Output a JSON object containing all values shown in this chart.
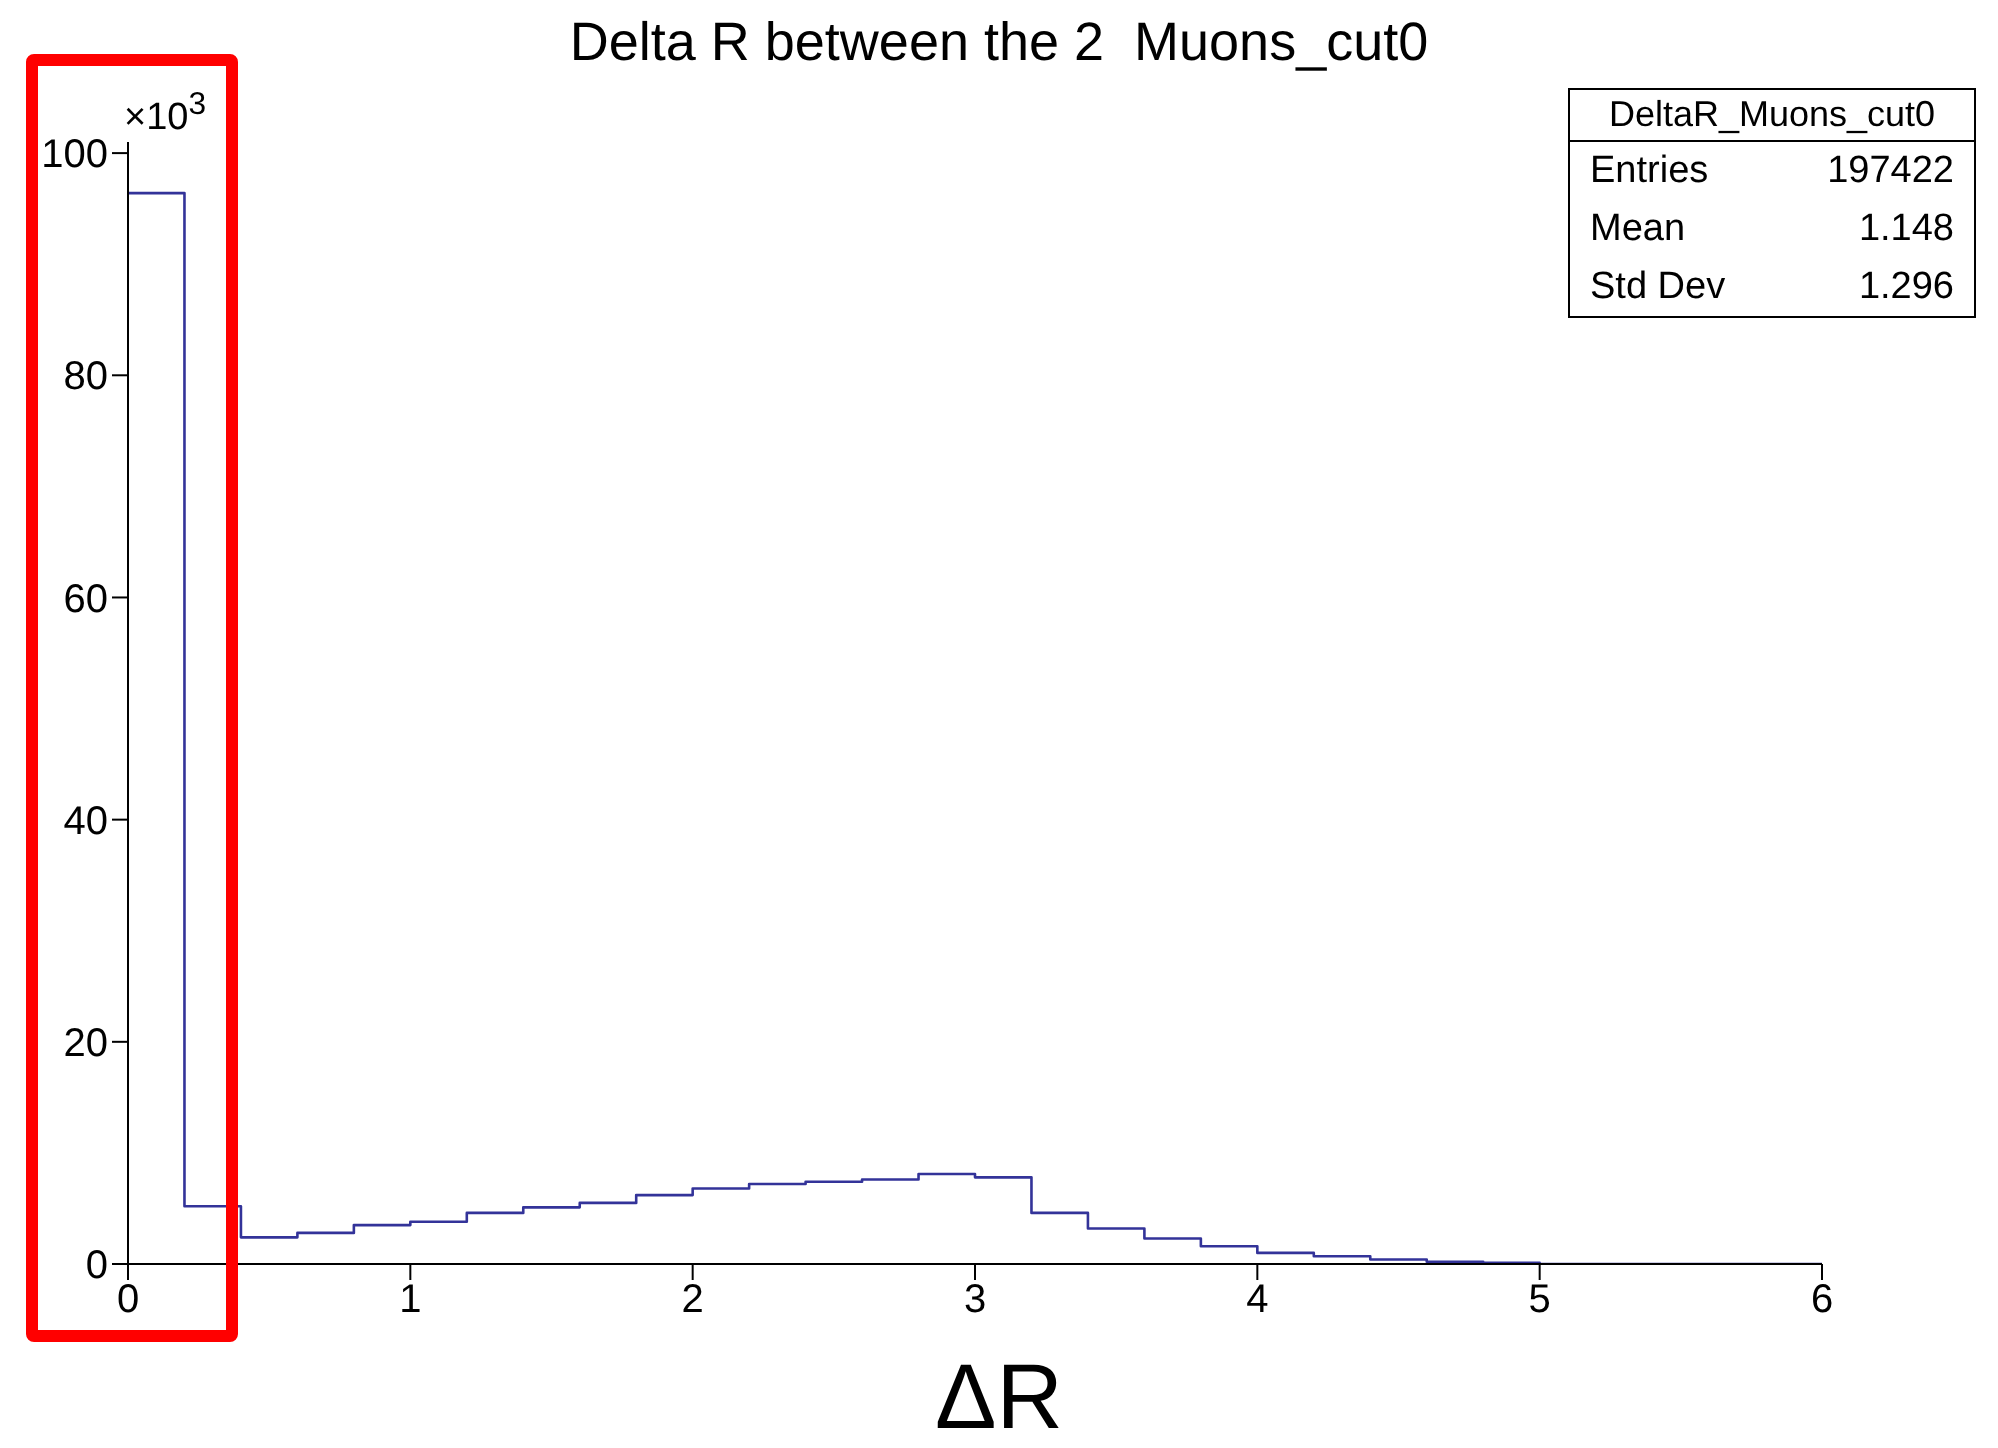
{
  "chart_data": {
    "type": "histogram",
    "title": "Delta R between the 2  Muons_cut0",
    "xlabel": "ΔR",
    "bins": [
      0,
      0.2,
      0.4,
      0.6,
      0.8,
      1,
      1.2,
      1.4,
      1.6,
      1.8,
      2,
      2.2,
      2.4,
      2.6,
      2.8,
      3,
      3.2,
      3.4,
      3.6,
      3.8,
      4,
      4.2,
      4.4,
      4.6,
      4.8,
      5,
      5.2,
      5.4,
      5.6,
      5.8,
      6
    ],
    "values": [
      96.4,
      5.2,
      2.4,
      2.8,
      3.5,
      3.8,
      4.6,
      5.1,
      5.5,
      6.2,
      6.8,
      7.2,
      7.4,
      7.6,
      8.1,
      7.8,
      4.6,
      3.2,
      2.3,
      1.6,
      1.0,
      0.7,
      0.4,
      0.2,
      0.1,
      0,
      0,
      0,
      0,
      0
    ],
    "color": "#333399",
    "xlim": [
      0,
      6
    ],
    "xticks": [
      0,
      1,
      2,
      3,
      4,
      5,
      6
    ],
    "ylim": [
      0,
      101
    ],
    "yticks": [
      0,
      20,
      40,
      60,
      80,
      100
    ],
    "annotations": [
      "×10$^{3}$",
      "DeltaR_Muons_cut0",
      "Entries",
      "197422",
      "Mean",
      "1.148",
      "Std Dev",
      "1.296"
    ]
  }
}
